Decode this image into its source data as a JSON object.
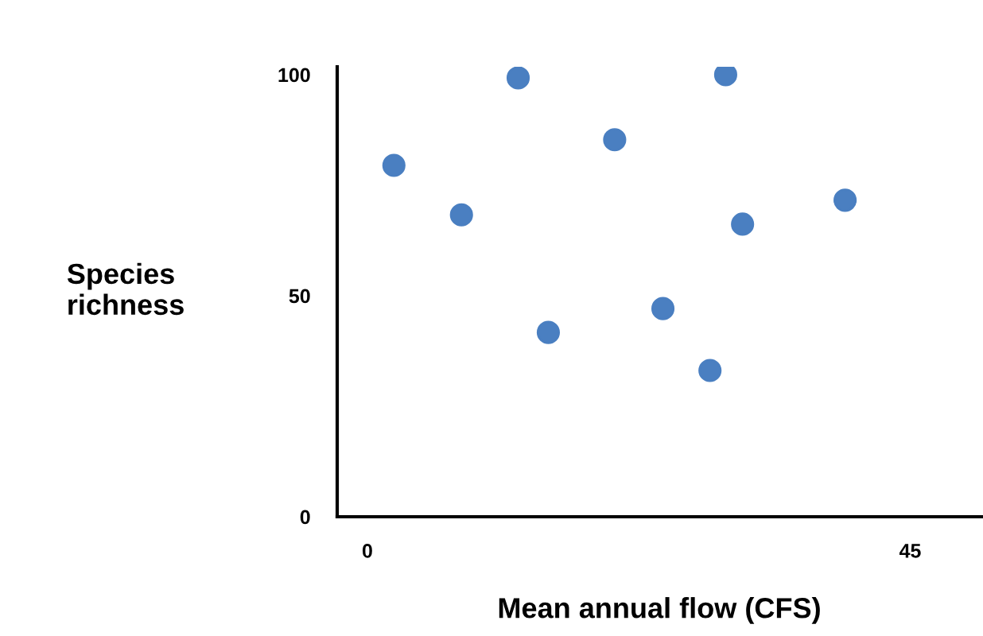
{
  "chart_data": {
    "type": "scatter",
    "xlabel": "Mean annual flow (CFS)",
    "ylabel": "Species\nrichness",
    "x": [
      2.2,
      7.8,
      12.5,
      15.0,
      20.5,
      24.5,
      28.4,
      29.7,
      31.1,
      39.6
    ],
    "values": [
      79.5,
      68.3,
      99.3,
      41.7,
      85.3,
      47.1,
      33.1,
      100,
      66.2,
      71.6
    ],
    "color": "#4a7fc1",
    "marker": "circle",
    "xlim": [
      -2.5,
      50.9
    ],
    "ylim": [
      0,
      101.8
    ],
    "xticks": [
      0,
      45
    ],
    "yticks": [
      0,
      50,
      100
    ],
    "grid": false
  }
}
